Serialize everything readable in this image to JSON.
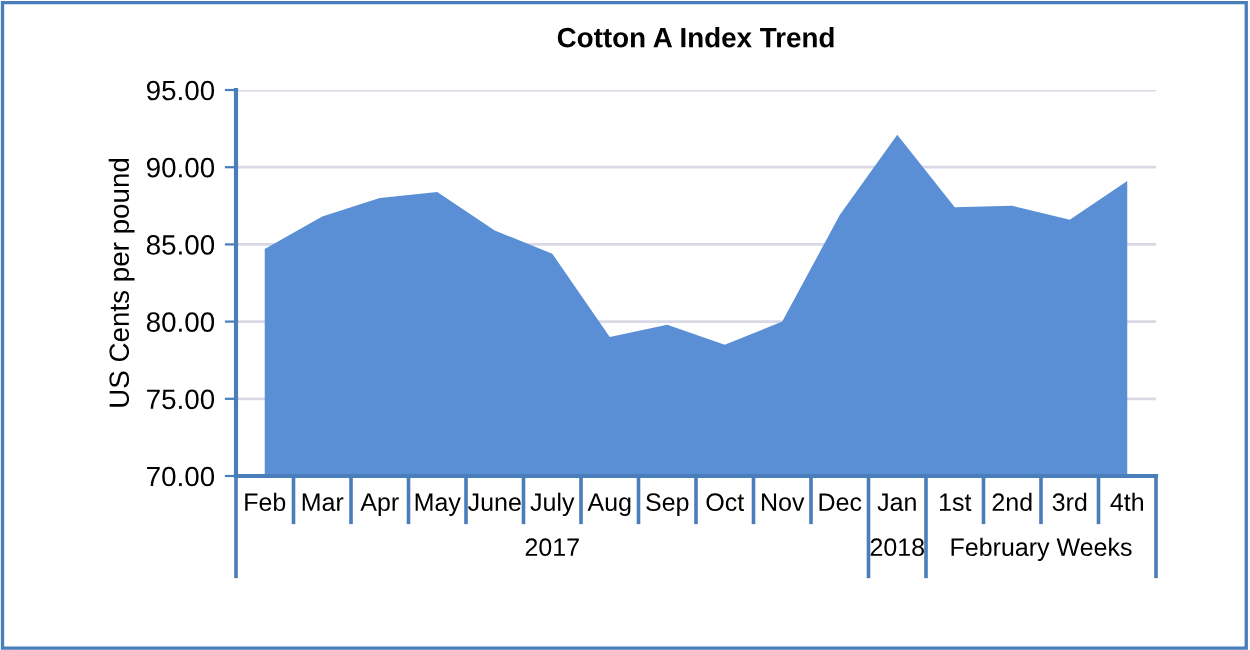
{
  "chart_data": {
    "type": "area",
    "title": "Cotton A Index Trend",
    "ylabel": "US Cents per pound",
    "categories": [
      "Feb",
      "Mar",
      "Apr",
      "May",
      "June",
      "July",
      "Aug",
      "Sep",
      "Oct",
      "Nov",
      "Dec",
      "Jan",
      "1st",
      "2nd",
      "3rd",
      "4th"
    ],
    "series": [
      {
        "color": "#5a8fd6",
        "values": [
          84.7,
          86.8,
          88.0,
          88.4,
          85.9,
          84.4,
          79.0,
          79.8,
          78.5,
          80.0,
          86.9,
          92.1,
          87.4,
          87.5,
          86.6,
          89.1
        ]
      }
    ],
    "ylim": [
      70,
      95
    ],
    "yticks": [
      {
        "value": 70,
        "label": "70.00"
      },
      {
        "value": 75,
        "label": "75.00"
      },
      {
        "value": 80,
        "label": "80.00"
      },
      {
        "value": 85,
        "label": "85.00"
      },
      {
        "value": 90,
        "label": "90.00"
      },
      {
        "value": 95,
        "label": "95.00"
      }
    ],
    "grid": "y",
    "annotations": [
      "2017",
      "2018",
      "February Weeks"
    ]
  }
}
